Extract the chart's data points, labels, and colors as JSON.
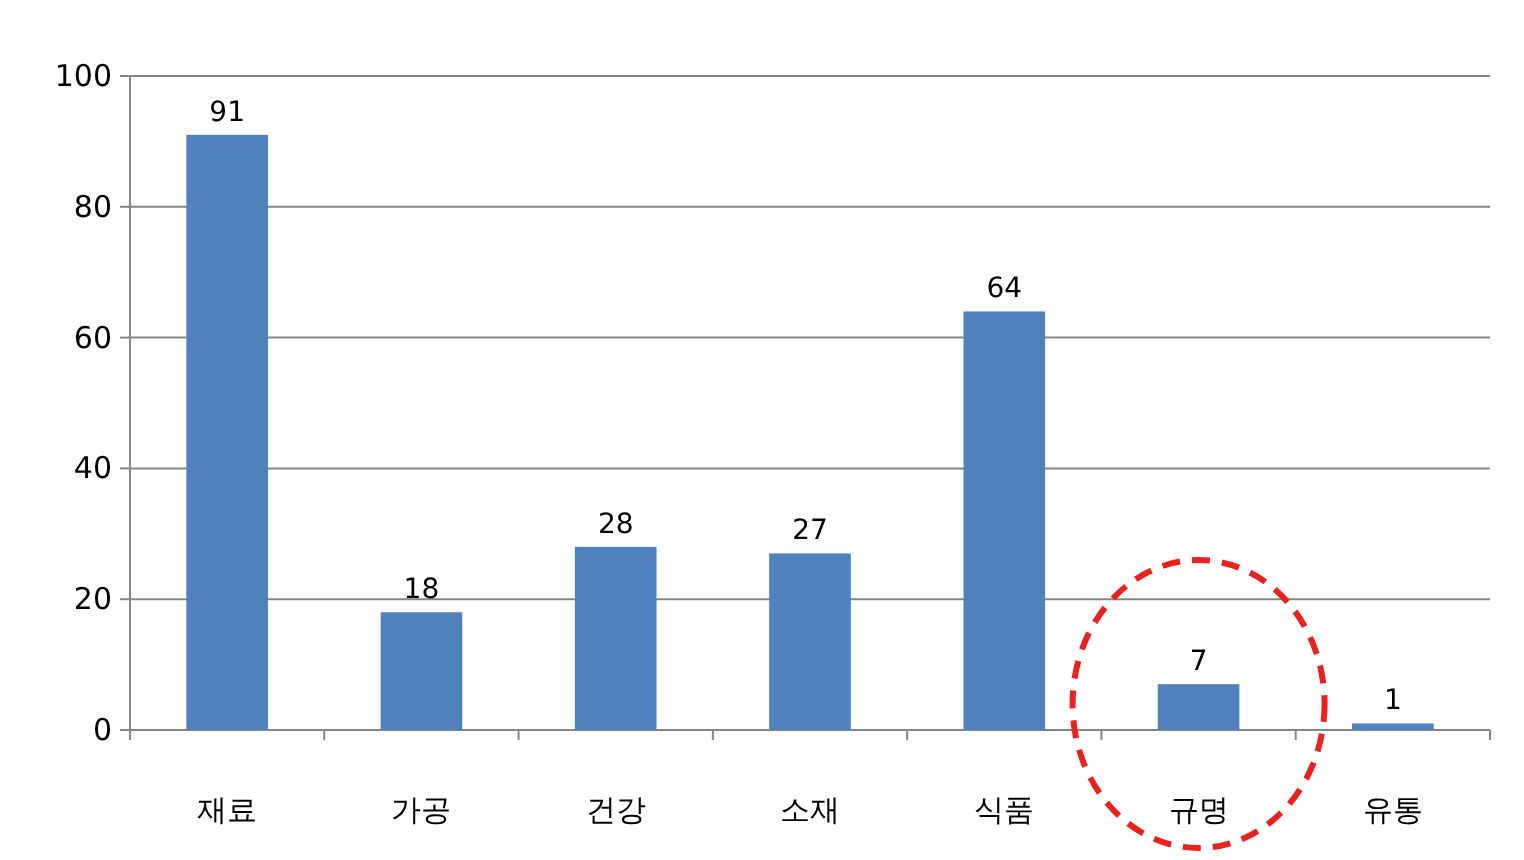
{
  "chart_data": {
    "type": "bar",
    "categories": [
      "재료",
      "가공",
      "건강",
      "소재",
      "식품",
      "규명",
      "유통"
    ],
    "values": [
      91,
      18,
      28,
      27,
      64,
      7,
      1
    ],
    "color": "#4f81bd",
    "ylim": [
      0,
      100
    ],
    "yticks": [
      0,
      20,
      40,
      60,
      80,
      100
    ],
    "grid": "y",
    "data_labels": true
  }
}
